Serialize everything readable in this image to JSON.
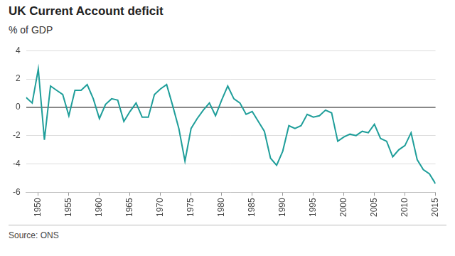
{
  "chart_data": {
    "type": "line",
    "title": "UK Current Account deficit",
    "subtitle": "% of GDP",
    "source": "Source: ONS",
    "x": [
      1948,
      1949,
      1950,
      1951,
      1952,
      1953,
      1954,
      1955,
      1956,
      1957,
      1958,
      1959,
      1960,
      1961,
      1962,
      1963,
      1964,
      1965,
      1966,
      1967,
      1968,
      1969,
      1970,
      1971,
      1972,
      1973,
      1974,
      1975,
      1976,
      1977,
      1978,
      1979,
      1980,
      1981,
      1982,
      1983,
      1984,
      1985,
      1986,
      1987,
      1988,
      1989,
      1990,
      1991,
      1992,
      1993,
      1994,
      1995,
      1996,
      1997,
      1998,
      1999,
      2000,
      2001,
      2002,
      2003,
      2004,
      2005,
      2006,
      2007,
      2008,
      2009,
      2010,
      2011,
      2012,
      2013,
      2014,
      2015
    ],
    "values": [
      0.7,
      0.3,
      2.7,
      -2.3,
      1.5,
      1.2,
      0.9,
      -0.6,
      1.2,
      1.2,
      1.6,
      0.6,
      -0.8,
      0.2,
      0.6,
      0.5,
      -1.0,
      -0.3,
      0.3,
      -0.7,
      -0.7,
      0.9,
      1.3,
      1.6,
      0.1,
      -1.5,
      -3.8,
      -1.5,
      -0.8,
      -0.2,
      0.3,
      -0.6,
      0.5,
      1.5,
      0.6,
      0.3,
      -0.5,
      -0.3,
      -1.0,
      -1.7,
      -3.6,
      -4.1,
      -3.1,
      -1.3,
      -1.5,
      -1.3,
      -0.5,
      -0.7,
      -0.6,
      -0.2,
      -0.4,
      -2.4,
      -2.1,
      -1.9,
      -2.0,
      -1.7,
      -1.8,
      -1.2,
      -2.2,
      -2.4,
      -3.5,
      -3.0,
      -2.7,
      -1.8,
      -3.7,
      -4.4,
      -4.7,
      -5.4
    ],
    "color": "#1f9e9a",
    "xlim": [
      1948,
      2015
    ],
    "xticks": [
      1950,
      1955,
      1960,
      1965,
      1970,
      1975,
      1980,
      1985,
      1990,
      1995,
      2000,
      2005,
      2010,
      2015
    ],
    "ylim": [
      -6,
      4
    ],
    "yticks": [
      -6,
      -4,
      -2,
      0,
      2,
      4
    ],
    "grid": true
  }
}
